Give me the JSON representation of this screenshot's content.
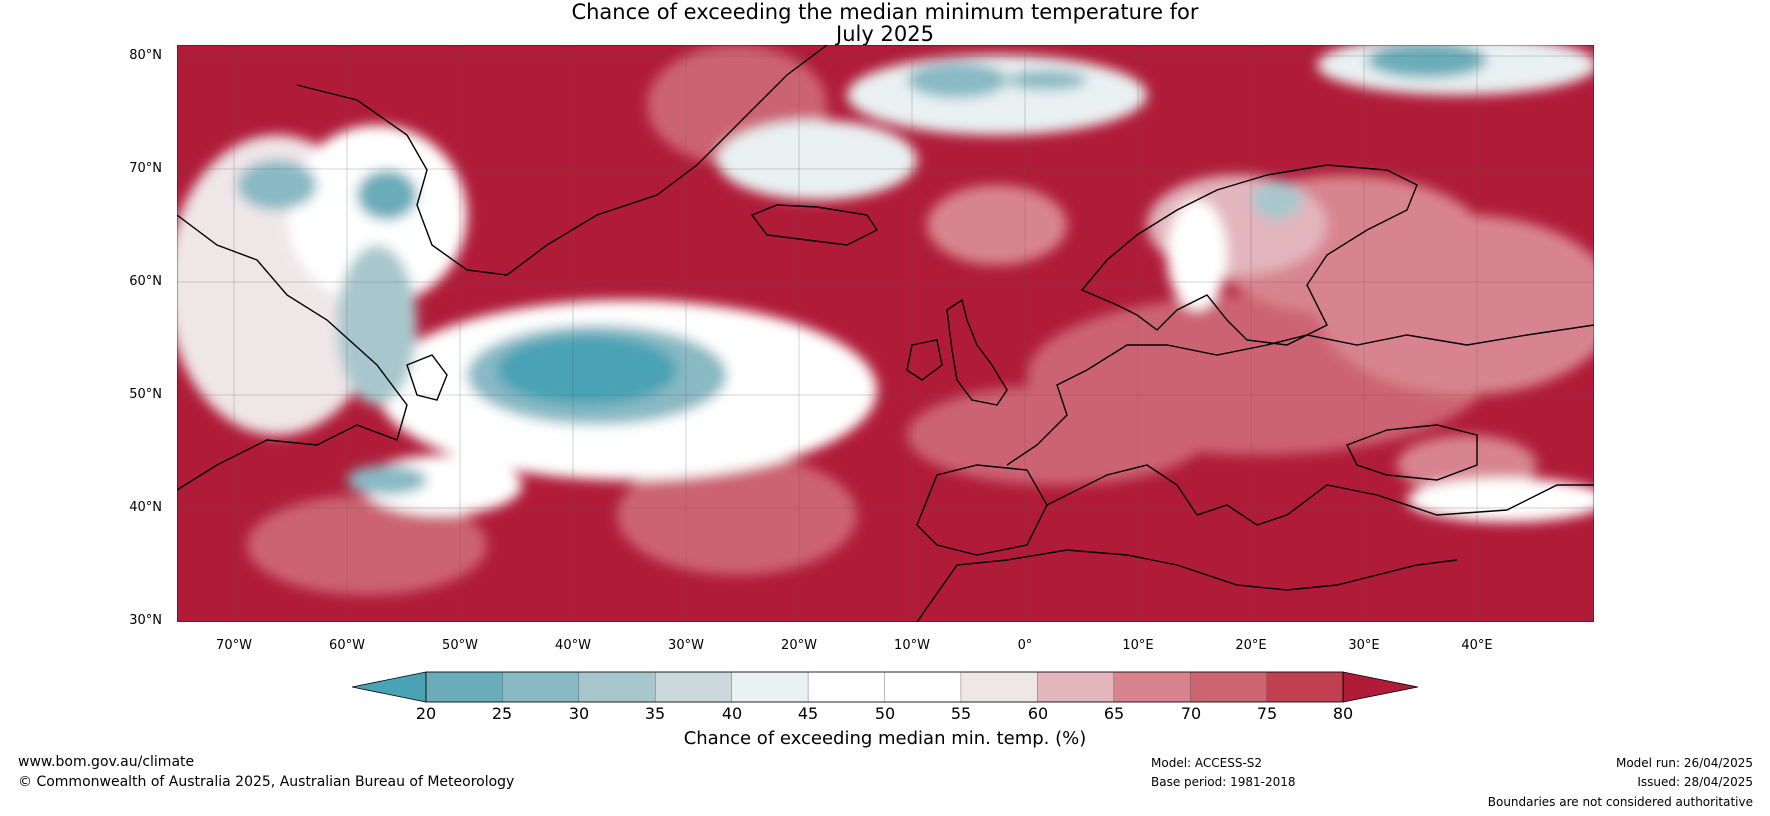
{
  "title": {
    "line1": "Chance of exceeding the median minimum temperature for",
    "line2": "July 2025"
  },
  "map": {
    "lat_labels": [
      "80°N",
      "70°N",
      "60°N",
      "50°N",
      "40°N",
      "30°N"
    ],
    "lon_labels": [
      "70°W",
      "60°W",
      "50°W",
      "40°W",
      "30°W",
      "20°W",
      "10°W",
      "0°",
      "10°E",
      "20°E",
      "30°E",
      "40°E"
    ],
    "extent": {
      "lon_min": -75,
      "lon_max": 50,
      "lat_min": 30,
      "lat_max": 81
    }
  },
  "colorbar": {
    "ticks": [
      "20",
      "25",
      "30",
      "35",
      "40",
      "45",
      "50",
      "55",
      "60",
      "65",
      "70",
      "75",
      "80"
    ],
    "colors": [
      "#4aa3b5",
      "#6aacb9",
      "#88b9c4",
      "#a8c7cc",
      "#ccd9dc",
      "#e9f1f2",
      "#ffffff",
      "#ffffff",
      "#efe6e8",
      "#e3b5bd",
      "#d8848f",
      "#cc6472",
      "#c0404f",
      "#b01c38"
    ],
    "label": "Chance of exceeding median min. temp. (%)"
  },
  "footer": {
    "website": "www.bom.gov.au/climate",
    "copyright": "© Commonwealth of Australia 2025, Australian Bureau of Meteorology",
    "model": "Model: ACCESS-S2",
    "base_period": "Base period: 1981-2018",
    "model_run": "Model run: 26/04/2025",
    "issued": "Issued: 28/04/2025",
    "disclaimer": "Boundaries are not considered authoritative"
  }
}
